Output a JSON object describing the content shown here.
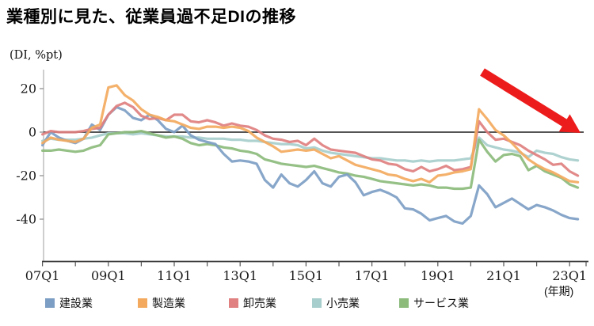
{
  "title": "業種別に見た、従業員過不足DIの推移",
  "y_axis": {
    "unit_label": "(DI, %pt)",
    "tick_values": [
      20,
      0,
      -20,
      -40
    ]
  },
  "x_axis": {
    "unit_label": "(年期)",
    "tick_labels": [
      "07Q1",
      "09Q1",
      "11Q1",
      "13Q1",
      "15Q1",
      "17Q1",
      "19Q1",
      "21Q1",
      "23Q1"
    ]
  },
  "annotation": {
    "trend_arrow_direction": "down-right",
    "trend_arrow_color": "#ed1c1c"
  },
  "chart_data": {
    "type": "line",
    "title": "業種別に見た、従業員過不足DIの推移",
    "ylabel": "(DI, %pt)",
    "xlabel": "(年期)",
    "x_start": "2007Q1",
    "x_end": "2023Q2",
    "x_frequency": "quarterly",
    "n_points": 66,
    "ylim": [
      -59,
      29
    ],
    "y_ticks": [
      20,
      0,
      -20,
      -40
    ],
    "x_tick_label_indices": [
      0,
      8,
      16,
      24,
      32,
      40,
      48,
      56,
      64
    ],
    "x_tick_labels": [
      "07Q1",
      "09Q1",
      "11Q1",
      "13Q1",
      "15Q1",
      "17Q1",
      "19Q1",
      "21Q1",
      "23Q1"
    ],
    "grid": false,
    "zero_line": true,
    "legend_position": "bottom",
    "series": [
      {
        "name": "建設業",
        "id": "construction",
        "color": "#7d9ec4",
        "values": [
          -6,
          0,
          -2.5,
          -4,
          -5,
          -3,
          3.5,
          1,
          8,
          11.5,
          10,
          6.5,
          5.5,
          8,
          5.5,
          1.5,
          0,
          3,
          -1.5,
          -3.5,
          -4.5,
          -5.5,
          -10,
          -13.5,
          -13,
          -13.5,
          -14.5,
          -22,
          -25.5,
          -19.5,
          -23.5,
          -25,
          -22,
          -18,
          -23.5,
          -25,
          -20.5,
          -19.5,
          -23,
          -29,
          -27.5,
          -26.5,
          -28,
          -30,
          -35,
          -35.5,
          -37.5,
          -40.5,
          -39.5,
          -38.5,
          -41,
          -42,
          -38.5,
          -24.5,
          -28.5,
          -34.5,
          -32.5,
          -30.5,
          -33,
          -35.5,
          -33.5,
          -34.5,
          -36,
          -38,
          -39.5,
          -40
        ]
      },
      {
        "name": "製造業",
        "id": "manufacturing",
        "color": "#f3aa5f",
        "values": [
          -5,
          -2.5,
          -3.5,
          -4,
          -4.5,
          -3,
          2,
          3.5,
          20.5,
          21.5,
          17,
          14.5,
          10.5,
          8,
          7,
          5.5,
          5,
          3.5,
          2,
          1.5,
          2.5,
          2.5,
          2,
          2.5,
          2,
          0.5,
          -2.5,
          -4.5,
          -6.5,
          -9,
          -8.5,
          -8,
          -8.5,
          -8,
          -10,
          -12,
          -11,
          -13,
          -15,
          -16,
          -17,
          -18,
          -19.5,
          -20,
          -21.5,
          -22.5,
          -21.5,
          -23,
          -20,
          -19.5,
          -18.5,
          -18,
          -17,
          10.5,
          6,
          1,
          -1.5,
          -5,
          -9,
          -12.5,
          -15,
          -17,
          -18.5,
          -20.5,
          -22.5,
          -23
        ]
      },
      {
        "name": "卸売業",
        "id": "wholesale",
        "color": "#e08080",
        "values": [
          -1,
          0.5,
          0,
          0,
          0,
          0.5,
          1.5,
          2,
          8,
          12,
          13.5,
          11.5,
          7.5,
          6,
          6.5,
          5.5,
          8,
          8,
          5,
          4.5,
          5.5,
          4.5,
          3,
          4,
          3,
          2.5,
          1,
          -1.5,
          -3,
          -3.5,
          -4.5,
          -4,
          -6,
          -3,
          -6,
          -8,
          -8.5,
          -9,
          -9.5,
          -11,
          -12.5,
          -13,
          -14.5,
          -15,
          -17,
          -18,
          -16,
          -18,
          -17,
          -15.5,
          -17.5,
          -17,
          -16,
          5,
          0,
          -3.5,
          -3,
          -4.5,
          -6,
          -8.5,
          -10.5,
          -12.5,
          -15,
          -14.5,
          -18,
          -20
        ]
      },
      {
        "name": "小売業",
        "id": "retail",
        "color": "#a7cecc",
        "values": [
          -4,
          -3,
          -3.5,
          -3.5,
          -3.5,
          -3,
          -2.5,
          -1.5,
          -0.5,
          -0.5,
          -0.5,
          -1,
          -0.5,
          -1,
          -1.5,
          -2,
          -2,
          -2,
          -2.5,
          -2.5,
          -3,
          -3,
          -3,
          -3.5,
          -3.5,
          -4,
          -4,
          -4.5,
          -5,
          -5.5,
          -5.5,
          -6,
          -7.5,
          -7,
          -8.5,
          -9.5,
          -10,
          -10.5,
          -11,
          -11.5,
          -12,
          -12,
          -12.5,
          -13,
          -13,
          -13.5,
          -13,
          -13.5,
          -13,
          -13,
          -13,
          -12.5,
          -12,
          -2.5,
          -6,
          -7,
          -8,
          -8.5,
          -9.5,
          -11.5,
          -8.5,
          -9.5,
          -10,
          -11.5,
          -12.5,
          -13
        ]
      },
      {
        "name": "サービス業",
        "id": "services",
        "color": "#8cbb7c",
        "values": [
          -8.5,
          -8.5,
          -8,
          -8.5,
          -9,
          -8.5,
          -7,
          -6,
          -1,
          -0.5,
          0,
          0,
          0.5,
          -0.5,
          -1.5,
          -2.5,
          -2,
          -3,
          -5,
          -6,
          -5.5,
          -6,
          -7,
          -7.5,
          -8.5,
          -9,
          -10,
          -12.5,
          -13.5,
          -14.5,
          -15,
          -15.5,
          -16,
          -15.5,
          -16.5,
          -17.5,
          -18.5,
          -19,
          -20,
          -20.5,
          -21.5,
          -22.5,
          -23,
          -23.5,
          -24,
          -24.5,
          -24,
          -24.5,
          -25.5,
          -25.5,
          -26,
          -26,
          -25.5,
          -3.5,
          -9,
          -13.5,
          -10.5,
          -10,
          -11,
          -17.5,
          -15.5,
          -18,
          -19.5,
          -21,
          -24,
          -25.5
        ]
      }
    ]
  }
}
